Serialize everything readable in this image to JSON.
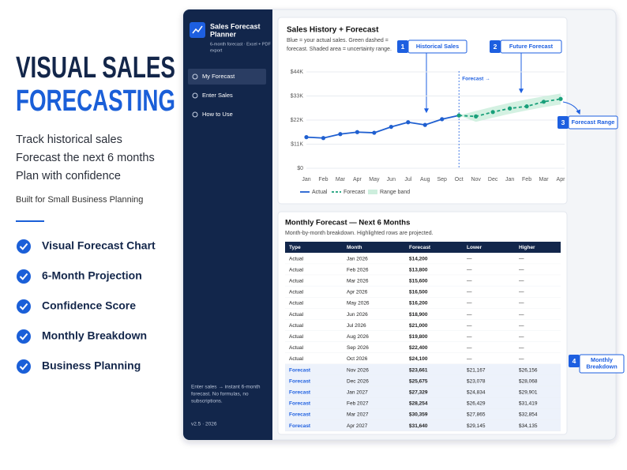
{
  "hero": {
    "title_lines": [
      "VISUAL SALES",
      "FORECASTING"
    ],
    "taglines": [
      "Track historical sales",
      "Forecast the next 6 months",
      "Plan with confidence"
    ],
    "note": "Built for Small Business Planning",
    "features": [
      "Visual Forecast Chart",
      "6-Month Projection",
      "Confidence Score",
      "Monthly Breakdown",
      "Business Planning"
    ]
  },
  "sidebar": {
    "app_name_lines": [
      "Sales Forecast",
      "Planner"
    ],
    "app_subtitle_lines": [
      "6-month forecast · Excel + PDF",
      "export"
    ],
    "nav": [
      "My Forecast",
      "Enter Sales",
      "How to Use"
    ],
    "footer_lines": [
      "Enter sales → instant 6-month",
      "forecast. No formulas, no",
      "subscriptions."
    ],
    "version": "v2.5 · 2026"
  },
  "chart_data": {
    "type": "line",
    "title": "Sales History + Forecast",
    "subtitle_lines": [
      "Blue = your actual sales. Green dashed =",
      "forecast. Shaded area = uncertainty range."
    ],
    "annotation": "Forecast →",
    "categories": [
      "Jan",
      "Feb",
      "Mar",
      "Apr",
      "May",
      "Jun",
      "Jul",
      "Aug",
      "Sep",
      "Oct",
      "Nov",
      "Dec",
      "Jan",
      "Feb",
      "Mar",
      "Apr"
    ],
    "series": [
      {
        "name": "Actual",
        "color": "#1f5fd0",
        "dashed": false,
        "values": [
          14200,
          13800,
          15600,
          16500,
          16200,
          18900,
          21000,
          19800,
          22400,
          24100,
          null,
          null,
          null,
          null,
          null,
          null
        ]
      },
      {
        "name": "Forecast",
        "color": "#19a07a",
        "dashed": true,
        "values": [
          null,
          null,
          null,
          null,
          null,
          null,
          null,
          null,
          null,
          24100,
          23661,
          25675,
          27329,
          28254,
          30359,
          31640
        ]
      }
    ],
    "band": {
      "name": "Range band",
      "color": "#cdeedd",
      "lower": [
        null,
        null,
        null,
        null,
        null,
        null,
        null,
        null,
        null,
        24100,
        21167,
        23078,
        24834,
        26429,
        27865,
        29145
      ],
      "upper": [
        null,
        null,
        null,
        null,
        null,
        null,
        null,
        null,
        null,
        24100,
        26156,
        28068,
        29901,
        31419,
        32854,
        34135
      ]
    },
    "ylim": [
      0,
      44000
    ],
    "yticks": [
      {
        "value": 0,
        "label": "$0"
      },
      {
        "value": 11000,
        "label": "$11K"
      },
      {
        "value": 22000,
        "label": "$22K"
      },
      {
        "value": 33000,
        "label": "$33K"
      },
      {
        "value": 44000,
        "label": "$44K"
      }
    ],
    "grid": true
  },
  "callouts": [
    {
      "number": 1,
      "label_lines": [
        "Historical Sales"
      ]
    },
    {
      "number": 2,
      "label_lines": [
        "Future Forecast"
      ]
    },
    {
      "number": 3,
      "label_lines": [
        "Forecast Range"
      ]
    },
    {
      "number": 4,
      "label_lines": [
        "Monthly",
        "Breakdown"
      ]
    }
  ],
  "table": {
    "title": "Monthly Forecast — Next 6 Months",
    "description": "Month-by-month breakdown. Highlighted rows are projected.",
    "header": [
      "Type",
      "Month",
      "Forecast",
      "Lower",
      "Higher"
    ],
    "rows": [
      [
        "Actual",
        "Jan 2026",
        "$14,200",
        "—",
        "—"
      ],
      [
        "Actual",
        "Feb 2026",
        "$13,800",
        "—",
        "—"
      ],
      [
        "Actual",
        "Mar 2026",
        "$15,600",
        "—",
        "—"
      ],
      [
        "Actual",
        "Apr 2026",
        "$16,500",
        "—",
        "—"
      ],
      [
        "Actual",
        "May 2026",
        "$16,200",
        "—",
        "—"
      ],
      [
        "Actual",
        "Jun 2026",
        "$18,900",
        "—",
        "—"
      ],
      [
        "Actual",
        "Jul 2026",
        "$21,000",
        "—",
        "—"
      ],
      [
        "Actual",
        "Aug 2026",
        "$19,800",
        "—",
        "—"
      ],
      [
        "Actual",
        "Sep 2026",
        "$22,400",
        "—",
        "—"
      ],
      [
        "Actual",
        "Oct 2026",
        "$24,100",
        "—",
        "—"
      ],
      [
        "Forecast",
        "Nov 2026",
        "$23,661",
        "$21,167",
        "$26,156"
      ],
      [
        "Forecast",
        "Dec 2026",
        "$25,675",
        "$23,078",
        "$28,068"
      ],
      [
        "Forecast",
        "Jan 2027",
        "$27,329",
        "$24,834",
        "$29,901"
      ],
      [
        "Forecast",
        "Feb 2027",
        "$28,254",
        "$26,429",
        "$31,419"
      ],
      [
        "Forecast",
        "Mar 2027",
        "$30,359",
        "$27,865",
        "$32,854"
      ],
      [
        "Forecast",
        "Apr 2027",
        "$31,640",
        "$29,145",
        "$34,135"
      ]
    ]
  }
}
